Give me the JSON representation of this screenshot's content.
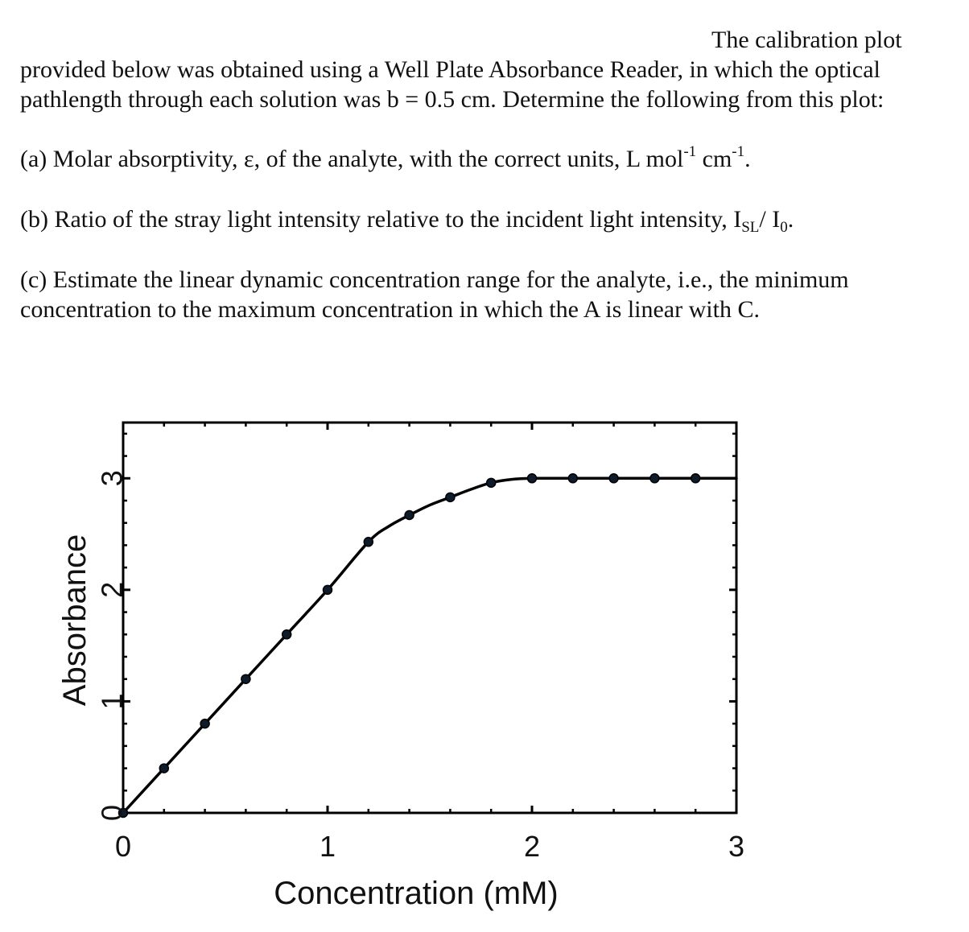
{
  "question": {
    "intro_line1": "The calibration plot",
    "intro_line2": "provided below was obtained using a Well Plate Absorbance Reader, in which the optical",
    "intro_line3": "pathlength through each solution was b = 0.5 cm. Determine the following from this plot:",
    "part_a_main": "(a) Molar absorptivity, ε, of the analyte, with the correct units, L mol",
    "part_a_sup1": "-1",
    "part_a_mid": " cm",
    "part_a_sup2": "-1",
    "part_a_end": ".",
    "part_b_main": "(b) Ratio of the stray light intensity relative to the incident light intensity, I",
    "part_b_sub1": "SL",
    "part_b_mid": "/ I",
    "part_b_sub2": "0",
    "part_b_end": ".",
    "part_c_line1": "(c) Estimate the linear dynamic concentration range for the analyte, i.e., the minimum",
    "part_c_line2": "concentration to the maximum concentration in which the A is linear with C."
  },
  "chart_data": {
    "type": "line",
    "title": "",
    "xlabel": "Concentration (mM)",
    "ylabel": "Absorbance",
    "xlim": [
      0,
      3
    ],
    "ylim": [
      0,
      3.5
    ],
    "x_ticks": [
      0,
      1,
      2,
      3
    ],
    "y_ticks": [
      0,
      1,
      2,
      3
    ],
    "grid": false,
    "legend": "none",
    "colors": {
      "line": "#000000",
      "marker": "#0d1b2a",
      "axis": "#000000"
    },
    "series": [
      {
        "x": [
          0,
          0.2,
          0.4,
          0.6,
          0.8,
          1.0,
          1.2,
          1.4,
          1.6,
          1.8,
          2.0,
          2.2,
          2.4,
          2.6,
          2.8
        ],
        "y": [
          0,
          0.4,
          0.8,
          1.2,
          1.6,
          2.0,
          2.43,
          2.67,
          2.83,
          2.96,
          3.0,
          3.0,
          3.0,
          3.0,
          3.0
        ]
      }
    ],
    "curve": {
      "x": [
        0,
        0.2,
        0.4,
        0.6,
        0.8,
        1.0,
        1.2,
        1.3,
        1.4,
        1.5,
        1.6,
        1.7,
        1.8,
        1.9,
        2.0,
        2.2,
        2.4,
        2.6,
        2.8,
        3.0
      ],
      "y": [
        0,
        0.4,
        0.8,
        1.2,
        1.6,
        2.0,
        2.43,
        2.57,
        2.67,
        2.76,
        2.83,
        2.9,
        2.96,
        2.99,
        3.0,
        3.0,
        3.0,
        3.0,
        3.0,
        3.0
      ]
    }
  }
}
